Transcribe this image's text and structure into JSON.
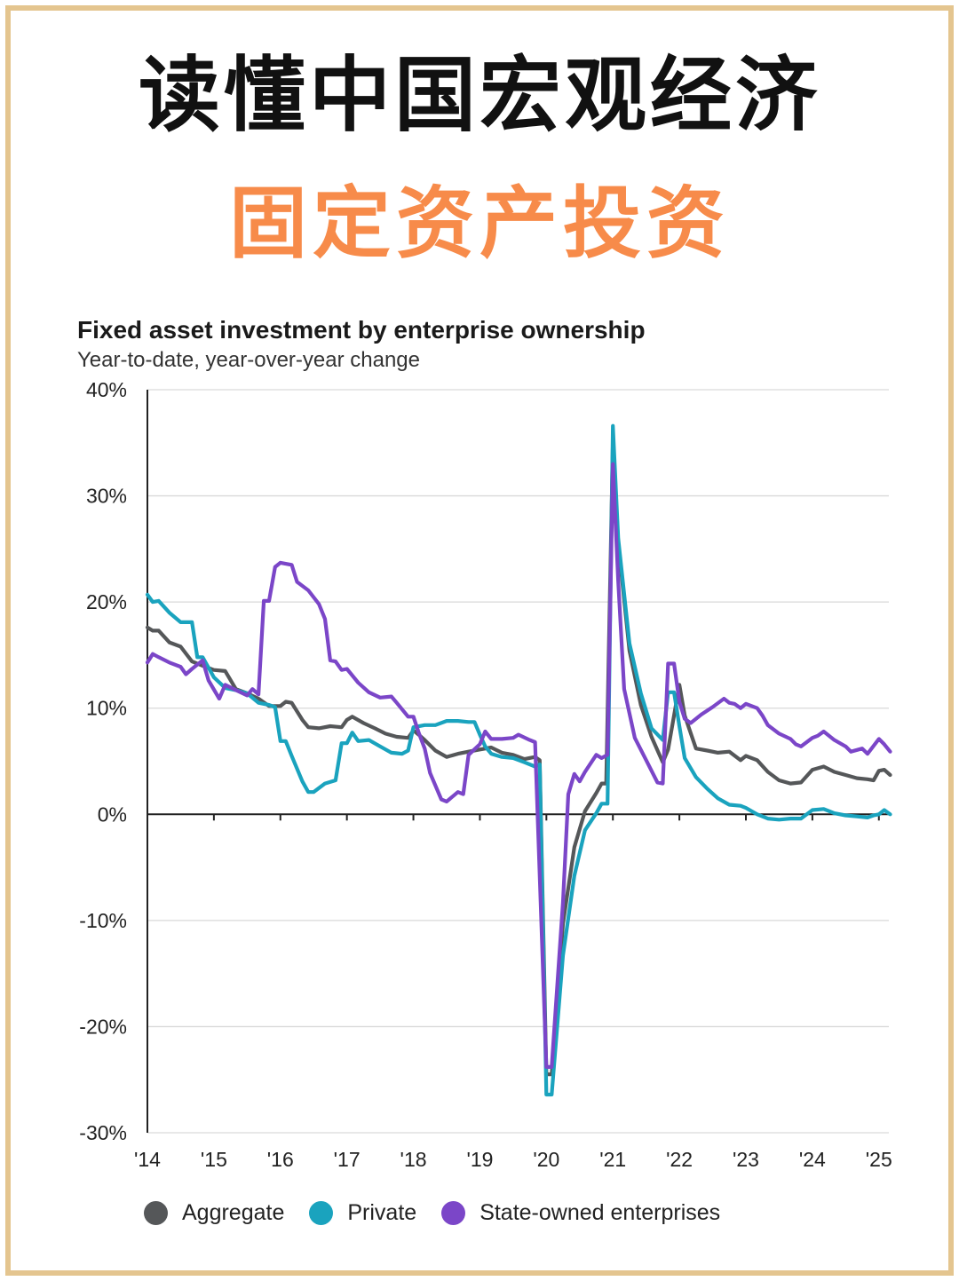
{
  "page": {
    "headline": "读懂中国宏观经济",
    "subheadline": "固定资产投资"
  },
  "colors": {
    "frame": "#e4c58f",
    "subheadline": "#f78b4a",
    "aggregate": "#555759",
    "private": "#1aa3be",
    "soe": "#7b46c8",
    "gridline": "#d9d9d9"
  },
  "chart_data": {
    "type": "line",
    "title": "Fixed asset investment by enterprise ownership",
    "subtitle": "Year-to-date, year-over-year change",
    "ylim": [
      -30,
      40
    ],
    "yticks": [
      {
        "value": 40,
        "label": "40%"
      },
      {
        "value": 30,
        "label": "30%"
      },
      {
        "value": 20,
        "label": "20%"
      },
      {
        "value": 10,
        "label": "10%"
      },
      {
        "value": 0,
        "label": "0%"
      },
      {
        "value": -10,
        "label": "-10%"
      },
      {
        "value": -20,
        "label": "-20%"
      },
      {
        "value": -30,
        "label": "-30%"
      }
    ],
    "xlim": [
      2014,
      2025.15
    ],
    "xticks": [
      {
        "value": 2014,
        "label": "'14"
      },
      {
        "value": 2015,
        "label": "'15"
      },
      {
        "value": 2016,
        "label": "'16"
      },
      {
        "value": 2017,
        "label": "'17"
      },
      {
        "value": 2018,
        "label": "'18"
      },
      {
        "value": 2019,
        "label": "'19"
      },
      {
        "value": 2020,
        "label": "'20"
      },
      {
        "value": 2021,
        "label": "'21"
      },
      {
        "value": 2022,
        "label": "'22"
      },
      {
        "value": 2023,
        "label": "'23"
      },
      {
        "value": 2024,
        "label": "'24"
      },
      {
        "value": 2025,
        "label": "'25"
      }
    ],
    "grid": true,
    "legend_position": "bottom",
    "series": [
      {
        "name": "Aggregate",
        "color": "#555759",
        "points": [
          [
            2014.0,
            17.6
          ],
          [
            2014.08,
            17.3
          ],
          [
            2014.17,
            17.3
          ],
          [
            2014.33,
            16.2
          ],
          [
            2014.5,
            15.8
          ],
          [
            2014.67,
            14.4
          ],
          [
            2014.83,
            14.0
          ],
          [
            2015.0,
            13.6
          ],
          [
            2015.17,
            13.5
          ],
          [
            2015.33,
            11.8
          ],
          [
            2015.5,
            11.4
          ],
          [
            2015.67,
            10.9
          ],
          [
            2015.83,
            10.2
          ],
          [
            2016.0,
            10.2
          ],
          [
            2016.08,
            10.6
          ],
          [
            2016.17,
            10.5
          ],
          [
            2016.33,
            8.9
          ],
          [
            2016.42,
            8.2
          ],
          [
            2016.58,
            8.1
          ],
          [
            2016.75,
            8.3
          ],
          [
            2016.92,
            8.2
          ],
          [
            2017.0,
            8.9
          ],
          [
            2017.08,
            9.2
          ],
          [
            2017.25,
            8.6
          ],
          [
            2017.42,
            8.1
          ],
          [
            2017.58,
            7.6
          ],
          [
            2017.75,
            7.3
          ],
          [
            2017.92,
            7.2
          ],
          [
            2018.0,
            7.9
          ],
          [
            2018.08,
            7.5
          ],
          [
            2018.17,
            7.0
          ],
          [
            2018.33,
            6.0
          ],
          [
            2018.5,
            5.4
          ],
          [
            2018.67,
            5.7
          ],
          [
            2018.83,
            5.9
          ],
          [
            2019.0,
            6.1
          ],
          [
            2019.17,
            6.3
          ],
          [
            2019.33,
            5.8
          ],
          [
            2019.5,
            5.6
          ],
          [
            2019.67,
            5.2
          ],
          [
            2019.83,
            5.4
          ],
          [
            2019.9,
            5.1
          ],
          [
            2020.0,
            -24.5
          ],
          [
            2020.08,
            -24.5
          ],
          [
            2020.25,
            -10.3
          ],
          [
            2020.42,
            -3.1
          ],
          [
            2020.58,
            0.3
          ],
          [
            2020.75,
            2.0
          ],
          [
            2020.83,
            2.9
          ],
          [
            2020.9,
            2.9
          ],
          [
            2021.0,
            35.0
          ],
          [
            2021.08,
            25.6
          ],
          [
            2021.25,
            15.4
          ],
          [
            2021.42,
            10.3
          ],
          [
            2021.58,
            7.3
          ],
          [
            2021.75,
            4.9
          ],
          [
            2021.83,
            6.1
          ],
          [
            2022.0,
            12.2
          ],
          [
            2022.08,
            9.3
          ],
          [
            2022.25,
            6.2
          ],
          [
            2022.42,
            6.0
          ],
          [
            2022.58,
            5.8
          ],
          [
            2022.75,
            5.9
          ],
          [
            2022.92,
            5.1
          ],
          [
            2023.0,
            5.5
          ],
          [
            2023.17,
            5.1
          ],
          [
            2023.33,
            4.0
          ],
          [
            2023.5,
            3.2
          ],
          [
            2023.67,
            2.9
          ],
          [
            2023.83,
            3.0
          ],
          [
            2024.0,
            4.2
          ],
          [
            2024.17,
            4.5
          ],
          [
            2024.33,
            4.0
          ],
          [
            2024.5,
            3.7
          ],
          [
            2024.67,
            3.4
          ],
          [
            2024.83,
            3.3
          ],
          [
            2024.92,
            3.2
          ],
          [
            2025.0,
            4.1
          ],
          [
            2025.08,
            4.2
          ],
          [
            2025.17,
            3.7
          ]
        ]
      },
      {
        "name": "Private",
        "color": "#1aa3be",
        "points": [
          [
            2014.0,
            20.7
          ],
          [
            2014.08,
            20.0
          ],
          [
            2014.17,
            20.1
          ],
          [
            2014.33,
            19.0
          ],
          [
            2014.5,
            18.1
          ],
          [
            2014.67,
            18.1
          ],
          [
            2014.75,
            14.8
          ],
          [
            2014.83,
            14.8
          ],
          [
            2015.0,
            12.9
          ],
          [
            2015.17,
            11.9
          ],
          [
            2015.33,
            11.7
          ],
          [
            2015.5,
            11.4
          ],
          [
            2015.67,
            10.5
          ],
          [
            2015.83,
            10.3
          ],
          [
            2015.92,
            10.1
          ],
          [
            2016.0,
            6.9
          ],
          [
            2016.08,
            6.9
          ],
          [
            2016.17,
            5.5
          ],
          [
            2016.33,
            3.1
          ],
          [
            2016.42,
            2.1
          ],
          [
            2016.5,
            2.1
          ],
          [
            2016.67,
            2.9
          ],
          [
            2016.83,
            3.2
          ],
          [
            2016.92,
            6.7
          ],
          [
            2017.0,
            6.7
          ],
          [
            2017.08,
            7.7
          ],
          [
            2017.17,
            6.9
          ],
          [
            2017.33,
            7.0
          ],
          [
            2017.5,
            6.4
          ],
          [
            2017.67,
            5.8
          ],
          [
            2017.83,
            5.7
          ],
          [
            2017.92,
            6.0
          ],
          [
            2018.0,
            8.2
          ],
          [
            2018.17,
            8.4
          ],
          [
            2018.33,
            8.4
          ],
          [
            2018.5,
            8.8
          ],
          [
            2018.67,
            8.8
          ],
          [
            2018.83,
            8.7
          ],
          [
            2018.92,
            8.7
          ],
          [
            2019.0,
            7.5
          ],
          [
            2019.08,
            6.4
          ],
          [
            2019.17,
            5.7
          ],
          [
            2019.33,
            5.4
          ],
          [
            2019.5,
            5.3
          ],
          [
            2019.67,
            4.9
          ],
          [
            2019.83,
            4.5
          ],
          [
            2019.9,
            4.7
          ],
          [
            2020.0,
            -26.4
          ],
          [
            2020.08,
            -26.4
          ],
          [
            2020.25,
            -13.3
          ],
          [
            2020.42,
            -5.8
          ],
          [
            2020.58,
            -1.5
          ],
          [
            2020.75,
            0.1
          ],
          [
            2020.83,
            1.0
          ],
          [
            2020.92,
            1.0
          ],
          [
            2021.0,
            36.6
          ],
          [
            2021.08,
            26.0
          ],
          [
            2021.25,
            16.1
          ],
          [
            2021.42,
            11.4
          ],
          [
            2021.58,
            8.1
          ],
          [
            2021.75,
            7.0
          ],
          [
            2021.83,
            11.5
          ],
          [
            2021.92,
            11.5
          ],
          [
            2022.0,
            8.3
          ],
          [
            2022.08,
            5.3
          ],
          [
            2022.25,
            3.5
          ],
          [
            2022.42,
            2.4
          ],
          [
            2022.58,
            1.5
          ],
          [
            2022.75,
            0.9
          ],
          [
            2022.92,
            0.8
          ],
          [
            2023.0,
            0.6
          ],
          [
            2023.17,
            0.0
          ],
          [
            2023.33,
            -0.4
          ],
          [
            2023.5,
            -0.5
          ],
          [
            2023.67,
            -0.4
          ],
          [
            2023.83,
            -0.4
          ],
          [
            2024.0,
            0.4
          ],
          [
            2024.17,
            0.5
          ],
          [
            2024.33,
            0.1
          ],
          [
            2024.5,
            -0.1
          ],
          [
            2024.67,
            -0.2
          ],
          [
            2024.83,
            -0.3
          ],
          [
            2024.92,
            -0.1
          ],
          [
            2025.0,
            0.0
          ],
          [
            2025.08,
            0.4
          ],
          [
            2025.17,
            0.0
          ]
        ]
      },
      {
        "name": "State-owned enterprises",
        "color": "#7b46c8",
        "points": [
          [
            2014.0,
            14.3
          ],
          [
            2014.08,
            15.1
          ],
          [
            2014.17,
            14.8
          ],
          [
            2014.33,
            14.3
          ],
          [
            2014.5,
            13.9
          ],
          [
            2014.58,
            13.2
          ],
          [
            2014.67,
            13.7
          ],
          [
            2014.83,
            14.5
          ],
          [
            2014.92,
            12.6
          ],
          [
            2015.08,
            10.9
          ],
          [
            2015.17,
            12.2
          ],
          [
            2015.33,
            11.7
          ],
          [
            2015.5,
            11.2
          ],
          [
            2015.58,
            11.8
          ],
          [
            2015.67,
            11.3
          ],
          [
            2015.75,
            20.1
          ],
          [
            2015.83,
            20.1
          ],
          [
            2015.92,
            23.3
          ],
          [
            2016.0,
            23.7
          ],
          [
            2016.17,
            23.5
          ],
          [
            2016.25,
            21.9
          ],
          [
            2016.42,
            21.1
          ],
          [
            2016.58,
            19.8
          ],
          [
            2016.67,
            18.4
          ],
          [
            2016.75,
            14.5
          ],
          [
            2016.83,
            14.4
          ],
          [
            2016.92,
            13.6
          ],
          [
            2017.0,
            13.7
          ],
          [
            2017.17,
            12.4
          ],
          [
            2017.33,
            11.5
          ],
          [
            2017.5,
            11.0
          ],
          [
            2017.67,
            11.1
          ],
          [
            2017.75,
            10.5
          ],
          [
            2017.92,
            9.2
          ],
          [
            2018.0,
            9.2
          ],
          [
            2018.08,
            7.7
          ],
          [
            2018.17,
            6.2
          ],
          [
            2018.25,
            3.9
          ],
          [
            2018.42,
            1.4
          ],
          [
            2018.5,
            1.2
          ],
          [
            2018.67,
            2.1
          ],
          [
            2018.75,
            1.9
          ],
          [
            2018.83,
            5.6
          ],
          [
            2019.0,
            6.6
          ],
          [
            2019.08,
            7.8
          ],
          [
            2019.17,
            7.1
          ],
          [
            2019.33,
            7.1
          ],
          [
            2019.5,
            7.2
          ],
          [
            2019.58,
            7.5
          ],
          [
            2019.75,
            7.0
          ],
          [
            2019.83,
            6.8
          ],
          [
            2020.0,
            -23.8
          ],
          [
            2020.08,
            -23.8
          ],
          [
            2020.25,
            -8.3
          ],
          [
            2020.33,
            1.9
          ],
          [
            2020.42,
            3.8
          ],
          [
            2020.5,
            3.1
          ],
          [
            2020.58,
            4.0
          ],
          [
            2020.75,
            5.6
          ],
          [
            2020.83,
            5.3
          ],
          [
            2020.92,
            5.6
          ],
          [
            2021.0,
            33.0
          ],
          [
            2021.08,
            22.0
          ],
          [
            2021.17,
            11.8
          ],
          [
            2021.33,
            7.2
          ],
          [
            2021.5,
            5.1
          ],
          [
            2021.67,
            3.0
          ],
          [
            2021.75,
            2.9
          ],
          [
            2021.83,
            14.2
          ],
          [
            2021.92,
            14.2
          ],
          [
            2022.0,
            10.6
          ],
          [
            2022.08,
            9.0
          ],
          [
            2022.17,
            8.6
          ],
          [
            2022.33,
            9.4
          ],
          [
            2022.5,
            10.1
          ],
          [
            2022.67,
            10.9
          ],
          [
            2022.75,
            10.5
          ],
          [
            2022.83,
            10.4
          ],
          [
            2022.92,
            10.0
          ],
          [
            2023.0,
            10.4
          ],
          [
            2023.17,
            10.0
          ],
          [
            2023.25,
            9.3
          ],
          [
            2023.33,
            8.4
          ],
          [
            2023.5,
            7.6
          ],
          [
            2023.67,
            7.1
          ],
          [
            2023.75,
            6.6
          ],
          [
            2023.83,
            6.4
          ],
          [
            2024.0,
            7.2
          ],
          [
            2024.08,
            7.4
          ],
          [
            2024.17,
            7.8
          ],
          [
            2024.33,
            7.0
          ],
          [
            2024.5,
            6.4
          ],
          [
            2024.58,
            5.9
          ],
          [
            2024.75,
            6.2
          ],
          [
            2024.83,
            5.7
          ],
          [
            2025.0,
            7.1
          ],
          [
            2025.08,
            6.6
          ],
          [
            2025.17,
            5.9
          ]
        ]
      }
    ]
  }
}
